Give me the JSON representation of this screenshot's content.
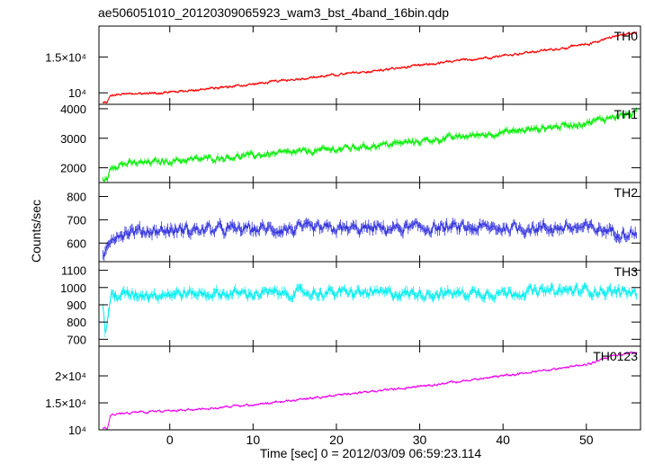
{
  "chart_data": {
    "type": "line",
    "title": "ae506051010_20120309065923_wam3_bst_4band_16bin.qdp",
    "xlabel": "Time [sec] 0 = 2012/03/09 06:59:23.114",
    "ylabel": "Counts/sec",
    "xlim": [
      -8.5,
      56.5
    ],
    "xticks": [
      0,
      10,
      20,
      30,
      40,
      50
    ],
    "xtick_labels": [
      "0",
      "10",
      "20",
      "30",
      "40",
      "50"
    ],
    "panels": [
      {
        "name": "TH0",
        "color": "#ff0000",
        "ylim": [
          8400,
          19300
        ],
        "yticks": [
          10000,
          15000
        ],
        "ytick_labels": [
          "10⁴",
          "1.5×10⁴"
        ],
        "x": [
          -8,
          -7.5,
          -7.1,
          -6,
          -4,
          -2,
          0,
          5,
          10,
          15,
          20,
          25,
          30,
          35,
          40,
          45,
          50,
          53,
          56
        ],
        "y": [
          8600,
          8700,
          9600,
          9750,
          9900,
          9950,
          10100,
          10600,
          11200,
          11900,
          12500,
          13100,
          13800,
          14500,
          15200,
          15900,
          16700,
          17800,
          18400
        ]
      },
      {
        "name": "TH1",
        "color": "#00ee00",
        "ylim": [
          1500,
          4150
        ],
        "yticks": [
          2000,
          3000,
          4000
        ],
        "ytick_labels": [
          "2000",
          "3000",
          "4000"
        ],
        "x": [
          -8,
          -7.5,
          -7.1,
          -6,
          -4,
          0,
          5,
          10,
          15,
          20,
          25,
          30,
          35,
          40,
          45,
          50,
          53,
          56
        ],
        "y": [
          1550,
          1600,
          2050,
          2120,
          2150,
          2230,
          2320,
          2420,
          2520,
          2630,
          2760,
          2900,
          3050,
          3200,
          3350,
          3520,
          3720,
          3850
        ]
      },
      {
        "name": "TH2",
        "color": "#3333dd",
        "ylim": [
          520,
          860
        ],
        "yticks": [
          600,
          700,
          800
        ],
        "ytick_labels": [
          "600",
          "700",
          "800"
        ],
        "x": [
          -8,
          -7.5,
          -7,
          -5,
          0,
          10,
          20,
          30,
          40,
          50,
          56
        ],
        "y": [
          540,
          580,
          630,
          650,
          655,
          660,
          660,
          665,
          665,
          665,
          640
        ]
      },
      {
        "name": "TH3",
        "color": "#00eeee",
        "ylim": [
          660,
          1150
        ],
        "yticks": [
          700,
          800,
          900,
          1000,
          1100
        ],
        "ytick_labels": [
          "700",
          "800",
          "900",
          "1000",
          "1100"
        ],
        "x": [
          -8,
          -7.7,
          -7.4,
          -7,
          -5,
          0,
          10,
          20,
          30,
          40,
          50,
          56
        ],
        "y": [
          880,
          720,
          860,
          950,
          960,
          965,
          965,
          970,
          965,
          970,
          985,
          970
        ]
      },
      {
        "name": "TH0123",
        "color": "#ee00ee",
        "ylim": [
          10000,
          25500
        ],
        "yticks": [
          10000,
          15000,
          20000
        ],
        "ytick_labels": [
          "10⁴",
          "1.5×10⁴",
          "2×10⁴"
        ],
        "x": [
          -8,
          -7.5,
          -7.1,
          -6,
          -4,
          0,
          5,
          10,
          15,
          20,
          25,
          30,
          35,
          40,
          45,
          50,
          53,
          56
        ],
        "y": [
          10200,
          10300,
          12800,
          13000,
          13200,
          13500,
          14000,
          14700,
          15500,
          16400,
          17200,
          18100,
          19000,
          20000,
          21000,
          22100,
          23700,
          24400
        ]
      }
    ]
  }
}
